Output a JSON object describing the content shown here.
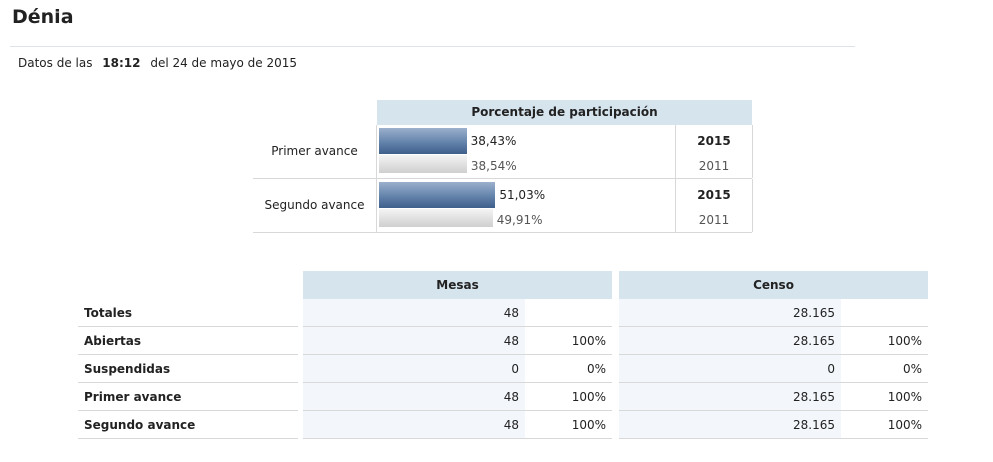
{
  "header": {
    "title": "Dénia"
  },
  "timestamp": {
    "prefix": "Datos de las",
    "time": "18:12",
    "suffix": "del 24 de mayo de 2015"
  },
  "participation": {
    "title": "Porcentaje de participación",
    "rows": [
      {
        "label": "Primer avance",
        "current": {
          "year": "2015",
          "value": 38.43,
          "label": "38,43%"
        },
        "previous": {
          "year": "2011",
          "value": 38.54,
          "label": "38,54%"
        }
      },
      {
        "label": "Segundo avance",
        "current": {
          "year": "2015",
          "value": 51.03,
          "label": "51,03%"
        },
        "previous": {
          "year": "2011",
          "value": 49.91,
          "label": "49,91%"
        }
      }
    ]
  },
  "tables": {
    "row_labels": [
      "Totales",
      "Abiertas",
      "Suspendidas",
      "Primer avance",
      "Segundo avance"
    ],
    "groups": [
      {
        "title": "Mesas",
        "rows": [
          [
            "48"
          ],
          [
            "48",
            "100%"
          ],
          [
            "0",
            "0%"
          ],
          [
            "48",
            "100%"
          ],
          [
            "48",
            "100%"
          ]
        ]
      },
      {
        "title": "Censo",
        "rows": [
          [
            "28.165"
          ],
          [
            "28.165",
            "100%"
          ],
          [
            "0",
            "0%"
          ],
          [
            "28.165",
            "100%"
          ],
          [
            "28.165",
            "100%"
          ]
        ]
      }
    ]
  }
}
